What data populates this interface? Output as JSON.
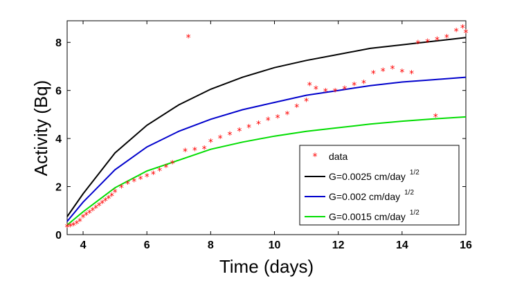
{
  "chart_data": {
    "type": "line",
    "xlabel": "Time (days)",
    "ylabel": "Activity (Bq)",
    "xlim": [
      3.5,
      16.0
    ],
    "ylim": [
      0,
      8.9
    ],
    "xticks": [
      4,
      6,
      8,
      10,
      12,
      14,
      16
    ],
    "yticks": [
      0,
      2,
      4,
      6,
      8
    ],
    "grid": false,
    "legend_position": "bottom-right",
    "series": [
      {
        "name": "data",
        "kind": "scatter",
        "marker": "*",
        "color": "#ff0000",
        "x": [
          3.5,
          3.6,
          3.7,
          3.8,
          3.9,
          4.0,
          4.1,
          4.2,
          4.3,
          4.4,
          4.5,
          4.6,
          4.7,
          4.8,
          4.9,
          5.0,
          5.2,
          5.4,
          5.6,
          5.8,
          6.0,
          6.2,
          6.4,
          6.6,
          6.8,
          7.2,
          7.3,
          7.5,
          7.8,
          8.0,
          8.3,
          8.6,
          8.9,
          9.2,
          9.5,
          9.8,
          10.1,
          10.4,
          10.7,
          11.0,
          11.1,
          11.3,
          11.6,
          11.9,
          12.2,
          12.5,
          12.8,
          13.1,
          13.4,
          13.7,
          14.0,
          14.3,
          14.5,
          14.8,
          15.1,
          15.4,
          15.7,
          15.9,
          16.0,
          15.05
        ],
        "y": [
          0.3,
          0.33,
          0.38,
          0.45,
          0.55,
          0.7,
          0.8,
          0.9,
          1.0,
          1.1,
          1.2,
          1.3,
          1.4,
          1.5,
          1.6,
          1.75,
          1.95,
          2.1,
          2.2,
          2.3,
          2.4,
          2.5,
          2.65,
          2.8,
          2.95,
          3.45,
          8.2,
          3.5,
          3.55,
          3.85,
          4.0,
          4.15,
          4.3,
          4.45,
          4.6,
          4.75,
          4.85,
          5.0,
          5.3,
          5.55,
          6.2,
          6.05,
          5.95,
          5.95,
          6.05,
          6.2,
          6.3,
          6.7,
          6.8,
          6.9,
          6.75,
          6.7,
          7.95,
          8.0,
          8.1,
          8.2,
          8.45,
          8.6,
          8.4,
          4.9
        ]
      },
      {
        "name": "G=0.0025 cm/day",
        "superscript": "1/2",
        "kind": "line",
        "color": "#000000",
        "x": [
          3.5,
          4,
          5,
          6,
          7,
          8,
          9,
          10,
          11,
          12,
          13,
          14,
          15,
          16
        ],
        "y": [
          0.75,
          1.7,
          3.4,
          4.55,
          5.4,
          6.05,
          6.55,
          6.95,
          7.25,
          7.5,
          7.75,
          7.9,
          8.05,
          8.2
        ]
      },
      {
        "name": "G=0.002 cm/day",
        "superscript": "1/2",
        "kind": "line",
        "color": "#0000cc",
        "x": [
          3.5,
          4,
          5,
          6,
          7,
          8,
          9,
          10,
          11,
          12,
          13,
          14,
          15,
          16
        ],
        "y": [
          0.55,
          1.35,
          2.7,
          3.65,
          4.3,
          4.8,
          5.2,
          5.5,
          5.8,
          6.0,
          6.2,
          6.35,
          6.45,
          6.55
        ]
      },
      {
        "name": "G=0.0015 cm/day",
        "superscript": "1/2",
        "kind": "line",
        "color": "#00dd00",
        "x": [
          3.5,
          4,
          5,
          6,
          7,
          8,
          9,
          10,
          11,
          12,
          13,
          14,
          15,
          16
        ],
        "y": [
          0.4,
          0.95,
          1.95,
          2.65,
          3.1,
          3.55,
          3.85,
          4.1,
          4.3,
          4.45,
          4.6,
          4.72,
          4.82,
          4.9
        ]
      }
    ]
  }
}
